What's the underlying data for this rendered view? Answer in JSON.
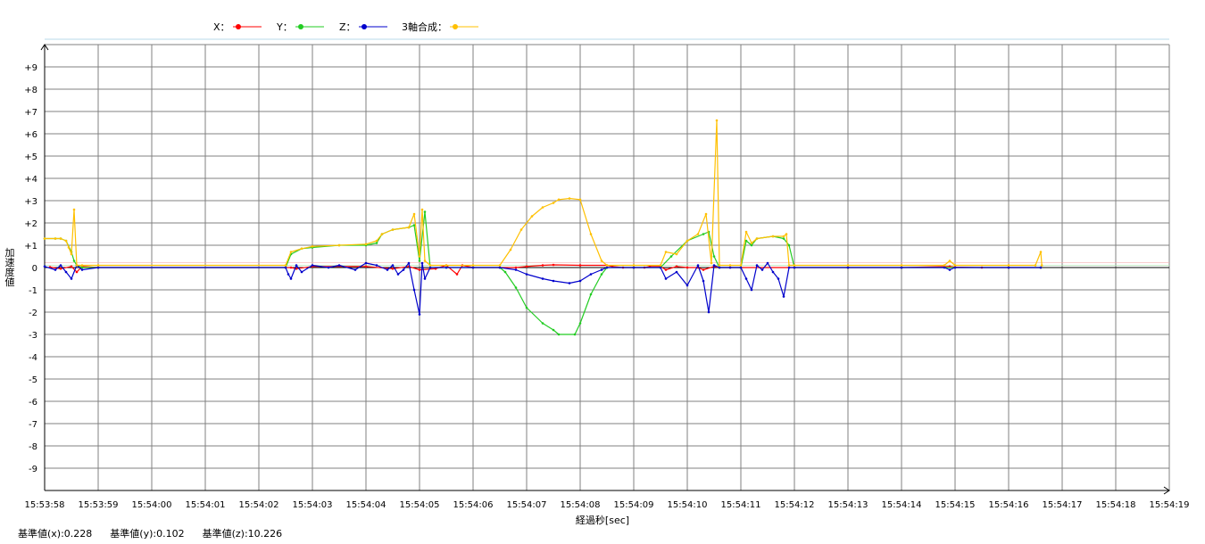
{
  "legend": [
    {
      "label": "X：",
      "color": "#ff0000"
    },
    {
      "label": "Y：",
      "color": "#22cc22"
    },
    {
      "label": "Z：",
      "color": "#0000cc"
    },
    {
      "label": "3軸合成：",
      "color": "#ffc000"
    }
  ],
  "axes": {
    "ylabel_chars": [
      "加",
      "速",
      "度",
      "値"
    ],
    "xlabel": "経過秒[sec]"
  },
  "baselines": {
    "x": "基準値(x):0.228",
    "y": "基準値(y):0.102",
    "z": "基準値(z):10.226"
  },
  "chart_data": {
    "type": "line",
    "xlabel": "経過秒[sec]",
    "ylabel": "加速度値",
    "ylim": [
      -10,
      10
    ],
    "xlim": [
      "15:53:58",
      "15:54:19"
    ],
    "grid": true,
    "legend_position": "top",
    "x_ticks": [
      "15:53:58",
      "15:53:59",
      "15:54:00",
      "15:54:01",
      "15:54:02",
      "15:54:03",
      "15:54:04",
      "15:54:05",
      "15:54:06",
      "15:54:07",
      "15:54:08",
      "15:54:09",
      "15:54:10",
      "15:54:11",
      "15:54:12",
      "15:54:13",
      "15:54:14",
      "15:54:15",
      "15:54:16",
      "15:54:17",
      "15:54:18",
      "15:54:19"
    ],
    "y_ticks": [
      "+9",
      "+8",
      "+7",
      "+6",
      "+5",
      "+4",
      "+3",
      "+2",
      "+1",
      "0",
      "-1",
      "-2",
      "-3",
      "-4",
      "-5",
      "-6",
      "-7",
      "-8",
      "-9"
    ],
    "x_seconds_after": "15:53:58",
    "series": [
      {
        "name": "X",
        "color": "#ff0000",
        "points": [
          [
            0.1,
            0.02
          ],
          [
            0.3,
            -0.05
          ],
          [
            0.5,
            0.05
          ],
          [
            0.6,
            -0.2
          ],
          [
            0.7,
            0.05
          ],
          [
            1.0,
            0.0
          ],
          [
            4.5,
            0.0
          ],
          [
            4.6,
            0.0
          ],
          [
            4.7,
            -0.05
          ],
          [
            5.0,
            0.05
          ],
          [
            6.0,
            0.05
          ],
          [
            6.5,
            -0.05
          ],
          [
            6.8,
            0.05
          ],
          [
            7.0,
            -0.1
          ],
          [
            7.3,
            -0.05
          ],
          [
            7.5,
            0.1
          ],
          [
            7.7,
            -0.3
          ],
          [
            7.8,
            0.1
          ],
          [
            8.0,
            0.0
          ],
          [
            8.5,
            0.0
          ],
          [
            8.8,
            0.0
          ],
          [
            9.0,
            0.05
          ],
          [
            9.3,
            0.1
          ],
          [
            9.5,
            0.12
          ],
          [
            10.0,
            0.1
          ],
          [
            10.5,
            0.1
          ],
          [
            10.6,
            0.05
          ],
          [
            10.8,
            0.0
          ],
          [
            11.0,
            0.0
          ],
          [
            11.2,
            0.0
          ],
          [
            11.3,
            0.05
          ],
          [
            11.5,
            0.05
          ],
          [
            11.6,
            -0.1
          ],
          [
            11.8,
            0.05
          ],
          [
            12.0,
            0.0
          ],
          [
            12.2,
            0.0
          ],
          [
            12.3,
            -0.1
          ],
          [
            12.5,
            0.05
          ],
          [
            12.6,
            0.0
          ],
          [
            12.8,
            0.0
          ],
          [
            13.0,
            0.0
          ],
          [
            14.0,
            0.0
          ],
          [
            15.0,
            0.0
          ],
          [
            16.0,
            0.0
          ],
          [
            16.9,
            0.05
          ],
          [
            17.0,
            0.02
          ],
          [
            17.5,
            0.0
          ],
          [
            18.0,
            0.0
          ],
          [
            18.6,
            0.0
          ]
        ]
      },
      {
        "name": "Y",
        "color": "#22cc22",
        "points": [
          [
            0.0,
            1.3
          ],
          [
            0.2,
            1.3
          ],
          [
            0.3,
            1.3
          ],
          [
            0.4,
            1.2
          ],
          [
            0.5,
            0.7
          ],
          [
            0.55,
            0.3
          ],
          [
            0.6,
            0.1
          ],
          [
            0.7,
            0.0
          ],
          [
            1.0,
            0.0
          ],
          [
            4.5,
            0.0
          ],
          [
            4.6,
            0.6
          ],
          [
            4.8,
            0.85
          ],
          [
            5.0,
            0.9
          ],
          [
            5.5,
            1.0
          ],
          [
            6.0,
            1.0
          ],
          [
            6.2,
            1.1
          ],
          [
            6.3,
            1.5
          ],
          [
            6.5,
            1.7
          ],
          [
            6.8,
            1.8
          ],
          [
            6.9,
            1.9
          ],
          [
            7.0,
            0.3
          ],
          [
            7.1,
            2.5
          ],
          [
            7.2,
            0.0
          ],
          [
            7.5,
            0.0
          ],
          [
            8.0,
            0.0
          ],
          [
            8.5,
            0.0
          ],
          [
            8.6,
            -0.2
          ],
          [
            8.8,
            -0.9
          ],
          [
            9.0,
            -1.8
          ],
          [
            9.3,
            -2.5
          ],
          [
            9.5,
            -2.8
          ],
          [
            9.6,
            -3.0
          ],
          [
            9.9,
            -3.0
          ],
          [
            10.0,
            -2.5
          ],
          [
            10.2,
            -1.2
          ],
          [
            10.4,
            -0.3
          ],
          [
            10.5,
            0.0
          ],
          [
            11.0,
            0.0
          ],
          [
            11.5,
            0.0
          ],
          [
            11.7,
            0.5
          ],
          [
            12.0,
            1.2
          ],
          [
            12.3,
            1.5
          ],
          [
            12.4,
            1.6
          ],
          [
            12.5,
            0.5
          ],
          [
            12.6,
            0.0
          ],
          [
            13.0,
            0.0
          ],
          [
            13.1,
            1.2
          ],
          [
            13.2,
            1.0
          ],
          [
            13.3,
            1.3
          ],
          [
            13.6,
            1.4
          ],
          [
            13.8,
            1.3
          ],
          [
            13.9,
            1.0
          ],
          [
            14.0,
            0.0
          ],
          [
            15.0,
            0.0
          ],
          [
            16.0,
            0.0
          ],
          [
            17.0,
            0.0
          ],
          [
            18.0,
            0.0
          ],
          [
            18.6,
            0.0
          ]
        ]
      },
      {
        "name": "Z",
        "color": "#0000cc",
        "points": [
          [
            0.0,
            0.05
          ],
          [
            0.2,
            -0.1
          ],
          [
            0.3,
            0.1
          ],
          [
            0.4,
            -0.2
          ],
          [
            0.5,
            -0.5
          ],
          [
            0.6,
            0.1
          ],
          [
            0.7,
            -0.1
          ],
          [
            1.0,
            0.0
          ],
          [
            4.5,
            0.0
          ],
          [
            4.55,
            -0.3
          ],
          [
            4.6,
            -0.5
          ],
          [
            4.7,
            0.1
          ],
          [
            4.8,
            -0.2
          ],
          [
            5.0,
            0.1
          ],
          [
            5.3,
            0.0
          ],
          [
            5.5,
            0.1
          ],
          [
            5.8,
            -0.1
          ],
          [
            6.0,
            0.2
          ],
          [
            6.2,
            0.1
          ],
          [
            6.4,
            -0.1
          ],
          [
            6.5,
            0.1
          ],
          [
            6.6,
            -0.3
          ],
          [
            6.7,
            -0.1
          ],
          [
            6.8,
            0.2
          ],
          [
            6.9,
            -1.0
          ],
          [
            7.0,
            -2.1
          ],
          [
            7.05,
            0.2
          ],
          [
            7.1,
            -0.5
          ],
          [
            7.2,
            0.0
          ],
          [
            7.5,
            0.0
          ],
          [
            8.0,
            0.0
          ],
          [
            8.5,
            0.0
          ],
          [
            8.8,
            -0.1
          ],
          [
            9.0,
            -0.3
          ],
          [
            9.3,
            -0.5
          ],
          [
            9.5,
            -0.6
          ],
          [
            9.8,
            -0.7
          ],
          [
            10.0,
            -0.6
          ],
          [
            10.2,
            -0.3
          ],
          [
            10.4,
            -0.1
          ],
          [
            10.5,
            0.0
          ],
          [
            11.0,
            0.0
          ],
          [
            11.5,
            0.0
          ],
          [
            11.6,
            -0.5
          ],
          [
            11.8,
            -0.2
          ],
          [
            12.0,
            -0.8
          ],
          [
            12.2,
            0.1
          ],
          [
            12.3,
            -0.6
          ],
          [
            12.4,
            -2.0
          ],
          [
            12.5,
            0.1
          ],
          [
            12.6,
            0.0
          ],
          [
            12.8,
            0.0
          ],
          [
            13.0,
            0.0
          ],
          [
            13.1,
            -0.5
          ],
          [
            13.2,
            -1.0
          ],
          [
            13.3,
            0.1
          ],
          [
            13.4,
            -0.1
          ],
          [
            13.5,
            0.2
          ],
          [
            13.6,
            -0.2
          ],
          [
            13.7,
            -0.5
          ],
          [
            13.8,
            -1.3
          ],
          [
            13.9,
            0.0
          ],
          [
            14.0,
            0.0
          ],
          [
            15.0,
            0.0
          ],
          [
            16.0,
            0.0
          ],
          [
            16.8,
            0.0
          ],
          [
            16.9,
            -0.1
          ],
          [
            17.0,
            0.0
          ],
          [
            18.0,
            0.0
          ],
          [
            18.6,
            0.0
          ]
        ]
      },
      {
        "name": "3軸合成",
        "color": "#ffc000",
        "points": [
          [
            0.0,
            1.3
          ],
          [
            0.2,
            1.3
          ],
          [
            0.3,
            1.3
          ],
          [
            0.4,
            1.2
          ],
          [
            0.45,
            0.9
          ],
          [
            0.5,
            0.6
          ],
          [
            0.55,
            2.6
          ],
          [
            0.6,
            0.1
          ],
          [
            0.7,
            0.1
          ],
          [
            1.0,
            0.1
          ],
          [
            4.5,
            0.1
          ],
          [
            4.6,
            0.7
          ],
          [
            4.8,
            0.85
          ],
          [
            5.0,
            0.95
          ],
          [
            5.5,
            1.0
          ],
          [
            6.0,
            1.05
          ],
          [
            6.2,
            1.2
          ],
          [
            6.3,
            1.5
          ],
          [
            6.5,
            1.7
          ],
          [
            6.8,
            1.8
          ],
          [
            6.9,
            2.4
          ],
          [
            7.0,
            0.5
          ],
          [
            7.05,
            2.6
          ],
          [
            7.1,
            0.3
          ],
          [
            7.2,
            0.1
          ],
          [
            7.5,
            0.1
          ],
          [
            8.0,
            0.1
          ],
          [
            8.5,
            0.1
          ],
          [
            8.7,
            0.8
          ],
          [
            8.9,
            1.7
          ],
          [
            9.1,
            2.3
          ],
          [
            9.3,
            2.7
          ],
          [
            9.5,
            2.9
          ],
          [
            9.6,
            3.05
          ],
          [
            9.8,
            3.1
          ],
          [
            10.0,
            3.05
          ],
          [
            10.2,
            1.5
          ],
          [
            10.4,
            0.3
          ],
          [
            10.5,
            0.1
          ],
          [
            11.0,
            0.1
          ],
          [
            11.5,
            0.1
          ],
          [
            11.6,
            0.7
          ],
          [
            11.8,
            0.6
          ],
          [
            12.0,
            1.2
          ],
          [
            12.2,
            1.5
          ],
          [
            12.35,
            2.4
          ],
          [
            12.45,
            0.2
          ],
          [
            12.55,
            6.6
          ],
          [
            12.6,
            0.1
          ],
          [
            12.8,
            0.1
          ],
          [
            13.0,
            0.1
          ],
          [
            13.1,
            1.6
          ],
          [
            13.2,
            1.1
          ],
          [
            13.3,
            1.3
          ],
          [
            13.6,
            1.4
          ],
          [
            13.8,
            1.4
          ],
          [
            13.85,
            1.5
          ],
          [
            13.9,
            0.1
          ],
          [
            14.0,
            0.1
          ],
          [
            15.0,
            0.1
          ],
          [
            16.0,
            0.1
          ],
          [
            16.8,
            0.1
          ],
          [
            16.9,
            0.3
          ],
          [
            17.0,
            0.1
          ],
          [
            18.0,
            0.1
          ],
          [
            18.5,
            0.1
          ],
          [
            18.6,
            0.7
          ],
          [
            18.62,
            0.1
          ]
        ]
      }
    ]
  }
}
